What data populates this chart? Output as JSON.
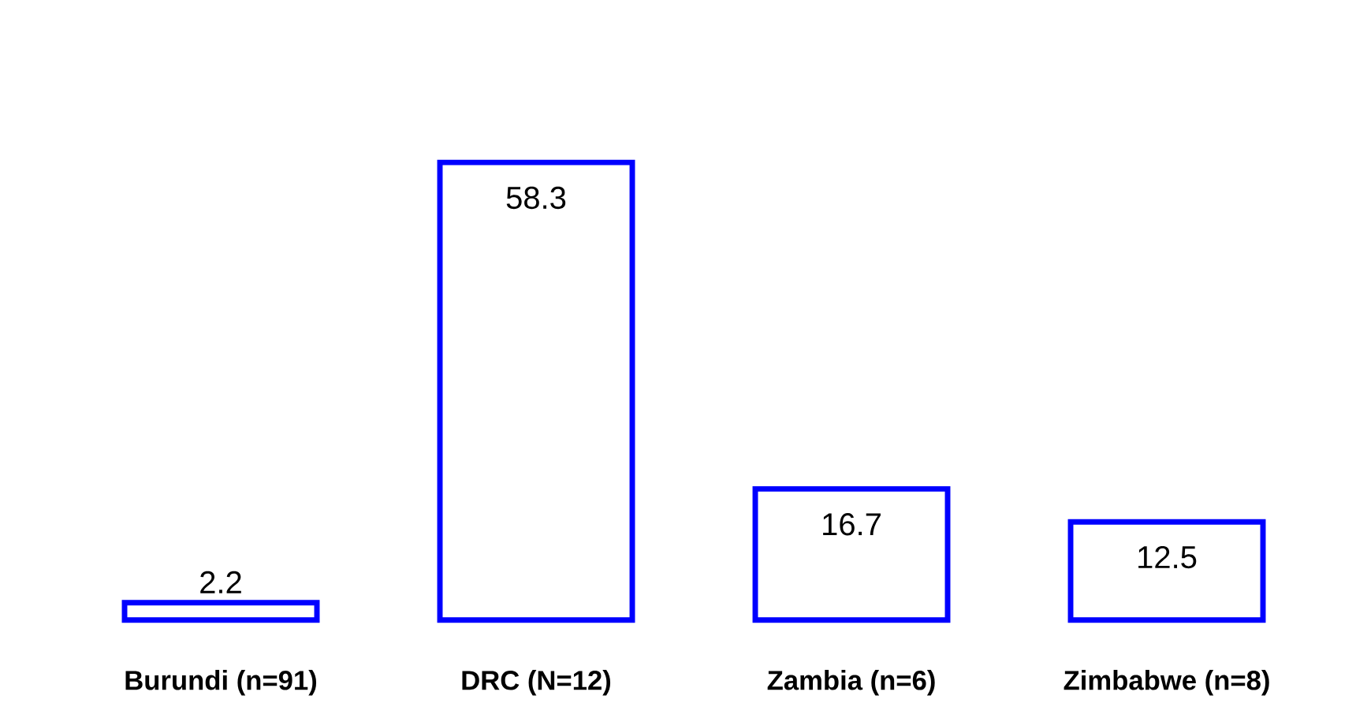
{
  "chart_data": {
    "type": "bar",
    "categories": [
      "Burundi (n=91)",
      "DRC (N=12)",
      "Zambia (n=6)",
      "Zimbabwe (n=8)"
    ],
    "values": [
      2.2,
      58.3,
      16.7,
      12.5
    ],
    "color": "#0000ff",
    "data_labels": true
  }
}
